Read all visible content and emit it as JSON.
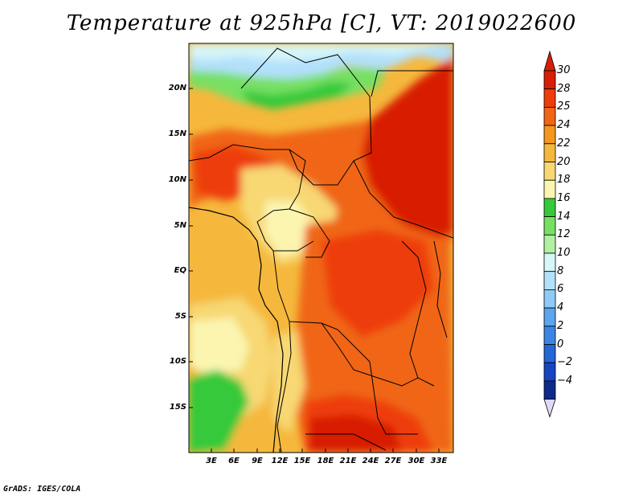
{
  "title": "Temperature at 925hPa [C], VT: 2019022600",
  "credit": "GrADS: IGES/COLA",
  "map": {
    "region": "Central Africa",
    "lon_labels": [
      "3E",
      "6E",
      "9E",
      "12E",
      "15E",
      "18E",
      "21E",
      "24E",
      "27E",
      "30E",
      "33E"
    ],
    "lat_labels": [
      "20N",
      "15N",
      "10N",
      "5N",
      "EQ",
      "5S",
      "10S",
      "15S"
    ],
    "extent": {
      "lon": [
        0,
        35
      ],
      "lat": [
        -20,
        24.5
      ]
    }
  },
  "colorbar": {
    "levels": [
      "30",
      "28",
      "25",
      "24",
      "22",
      "20",
      "18",
      "16",
      "14",
      "12",
      "10",
      "8",
      "6",
      "4",
      "2",
      "0",
      "-2",
      "-4"
    ],
    "colors": [
      "#d81e06",
      "#ee3c0a",
      "#f06614",
      "#f5961e",
      "#f5b83c",
      "#f7d873",
      "#fbf5b0",
      "#36c93a",
      "#77e063",
      "#b1f0a2",
      "#d6f6f8",
      "#b3e0fb",
      "#8fcbf6",
      "#5da5ec",
      "#3d85e3",
      "#2566d8",
      "#1744c0",
      "#0d2a8a"
    ],
    "top_color": "#d81e06",
    "bottom_color": "#e0d8f4"
  }
}
